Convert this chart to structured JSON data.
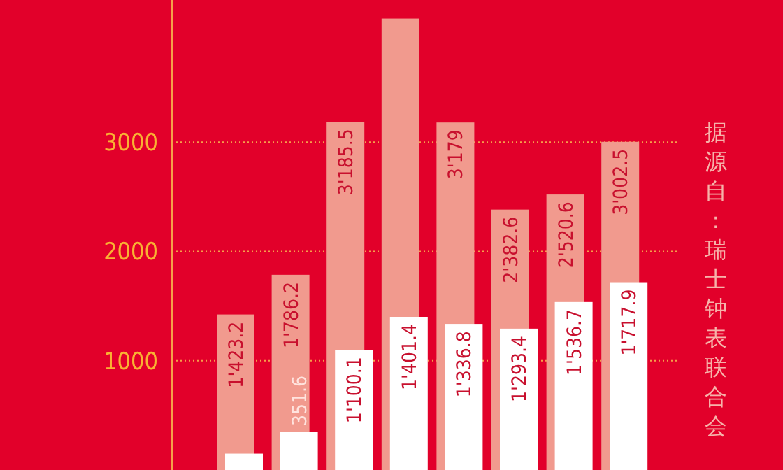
{
  "chart_data": {
    "type": "bar",
    "categories": [
      null,
      null,
      null,
      null,
      null,
      null,
      null,
      null
    ],
    "series": [
      {
        "color": "#f19a8e",
        "values": [
          1423.2,
          1786.2,
          3185.5,
          4130,
          3179,
          2382.6,
          2520.6,
          3002.5
        ],
        "value_labels": [
          "1'423.2",
          "1'786.2",
          "3'185.5",
          null,
          "3'179",
          "2'382.6",
          "2'520.6",
          "3'002.5"
        ]
      },
      {
        "color": "#ffffff",
        "values": [
          150,
          351.6,
          1100.1,
          1401.4,
          1336.8,
          1293.4,
          1536.7,
          1717.9
        ],
        "value_labels": [
          null,
          "351.6",
          "1'100.1",
          "1'401.4",
          "1'336.8",
          "1'293.4",
          "1'536.7",
          "1'717.9"
        ]
      }
    ],
    "ylim": [
      0,
      4300
    ],
    "yticks": [
      1000,
      2000,
      3000
    ],
    "grid": "y",
    "tick_labels": "y",
    "annotations": [
      "据源自：瑞士钟表联合会"
    ]
  }
}
